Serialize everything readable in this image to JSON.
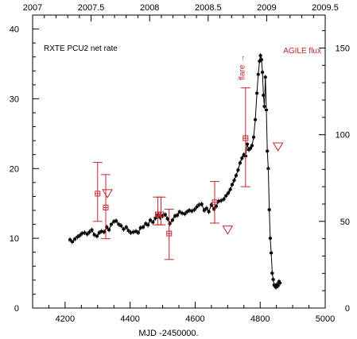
{
  "chart_data": {
    "type": "scatter",
    "title": "",
    "xlabel": "MJD -2450000.",
    "ylabel": "",
    "x_range": [
      4100,
      5000
    ],
    "y_left_range": [
      0,
      42
    ],
    "y_right_range": [
      0,
      169
    ],
    "x_ticks": [
      "4200",
      "4400",
      "4600",
      "4800",
      "5000"
    ],
    "y_left_ticks": [
      "0",
      "10",
      "20",
      "30",
      "40"
    ],
    "y_right_ticks": [
      "0",
      "50",
      "100",
      "150"
    ],
    "top_axis_ticks": [
      "2007",
      "2007.5",
      "2008",
      "2008.5",
      "2009",
      "2009.5"
    ],
    "grid": false,
    "colors": {
      "rxte": "#000000",
      "agile": "#c0282d"
    },
    "annotations": {
      "series1_label": "RXTE PCU2 net rate",
      "series2_label": "AGILE flux",
      "flare_label": "flare →",
      "flare_x": 4752,
      "flare_y_top": 36.8,
      "flare_y_bottom": 32.2
    },
    "series": [
      {
        "name": "RXTE PCU2 net rate",
        "axis": "left",
        "marker": "x",
        "x": [
          4215,
          4222,
          4230,
          4238,
          4245,
          4252,
          4260,
          4268,
          4275,
          4282,
          4290,
          4298,
          4305,
          4312,
          4320,
          4328,
          4335,
          4342,
          4350,
          4357,
          4365,
          4372,
          4380,
          4388,
          4395,
          4402,
          4410,
          4418,
          4425,
          4432,
          4440,
          4448,
          4455,
          4462,
          4470,
          4478,
          4485,
          4492,
          4500,
          4508,
          4515,
          4522,
          4530,
          4538,
          4545,
          4552,
          4560,
          4568,
          4575,
          4582,
          4590,
          4598,
          4605,
          4612,
          4620,
          4628,
          4635,
          4642,
          4650,
          4658,
          4665,
          4672,
          4680,
          4688,
          4695,
          4702,
          4708,
          4714,
          4720,
          4726,
          4732,
          4738,
          4744,
          4750,
          4755,
          4760,
          4765,
          4770,
          4775,
          4780,
          4785,
          4790,
          4794,
          4798,
          4801,
          4804,
          4807,
          4810,
          4813,
          4816,
          4819,
          4822,
          4825,
          4828,
          4831,
          4834,
          4837,
          4840,
          4843,
          4846,
          4849,
          4852,
          4855,
          4858,
          4861
        ],
        "y": [
          9.8,
          9.5,
          9.9,
          10.2,
          10.4,
          10.7,
          10.8,
          10.6,
          10.9,
          11.2,
          10.5,
          10.3,
          10.8,
          11.0,
          10.9,
          11.6,
          11.2,
          12.0,
          12.4,
          12.5,
          12.0,
          11.8,
          11.3,
          11.6,
          11.1,
          10.8,
          10.9,
          11.0,
          10.8,
          11.5,
          11.6,
          12.1,
          11.9,
          12.6,
          12.3,
          12.9,
          13.4,
          13.0,
          13.2,
          13.4,
          12.8,
          12.1,
          12.6,
          13.2,
          13.3,
          13.8,
          13.6,
          13.5,
          13.8,
          14.0,
          13.9,
          14.1,
          14.5,
          14.8,
          14.9,
          14.0,
          14.3,
          13.8,
          14.8,
          14.2,
          14.6,
          15.3,
          15.4,
          15.6,
          16.1,
          16.5,
          17.0,
          17.7,
          18.3,
          19.0,
          19.8,
          20.8,
          21.5,
          22.0,
          21.8,
          23.5,
          22.7,
          22.9,
          23.3,
          24.5,
          27.0,
          30.8,
          33.5,
          35.4,
          36.2,
          35.6,
          33.8,
          30.5,
          28.9,
          33.1,
          28.4,
          22.5,
          20.0,
          14.1,
          10.0,
          7.9,
          5.0,
          4.1,
          3.3,
          3.1,
          3.0,
          3.4,
          3.2,
          3.8,
          3.6
        ]
      },
      {
        "name": "AGILE flux",
        "axis": "right",
        "marker": "square-errorbar",
        "x": [
          4300,
          4325,
          4485,
          4495,
          4520,
          4660,
          4755
        ],
        "y": [
          66,
          58,
          54,
          54,
          43,
          61,
          98
        ],
        "y_err_low": [
          16,
          18,
          6,
          6,
          15,
          12,
          28
        ],
        "y_err_high": [
          18,
          19,
          10,
          10,
          14,
          12,
          29
        ]
      },
      {
        "name": "AGILE upper limits",
        "axis": "right",
        "marker": "down-triangle",
        "x": [
          4330,
          4700,
          4855
        ],
        "y": [
          66,
          45,
          93
        ]
      }
    ]
  }
}
